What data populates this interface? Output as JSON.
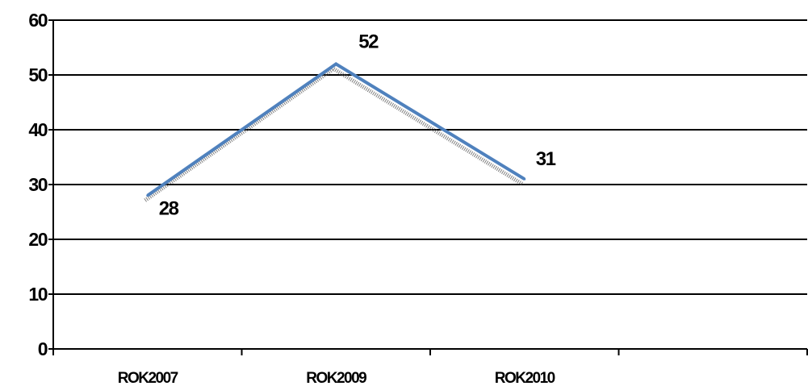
{
  "chart_data": {
    "type": "line",
    "categories": [
      "ROK2007",
      "ROK2009",
      "ROK2010"
    ],
    "series": [
      {
        "values": [
          28,
          52,
          31
        ],
        "color": "#4F81BD"
      }
    ],
    "data_labels": [
      "28",
      "52",
      "31"
    ],
    "yticks": [
      "0",
      "10",
      "20",
      "30",
      "40",
      "50",
      "60"
    ],
    "ylim": [
      0,
      60
    ],
    "grid": true,
    "legend": "none",
    "line_color": "#4F81BD",
    "shadow_color": "#555555"
  }
}
